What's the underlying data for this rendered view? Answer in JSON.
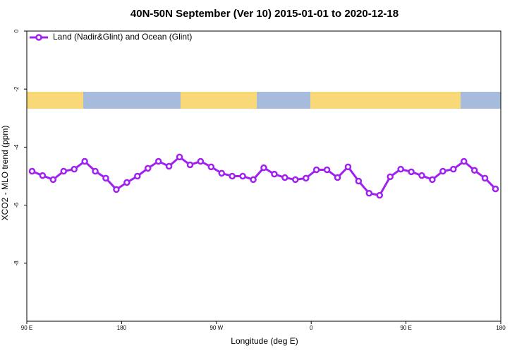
{
  "chart_data": {
    "type": "line",
    "title": "40N-50N September (Ver 10)   2015-01-01 to 2020-12-18",
    "xlabel": "Longitude (deg E)",
    "ylabel": "XCO2 - MLO trend (ppm)",
    "x": [
      95,
      105,
      115,
      125,
      135,
      145,
      155,
      165,
      175,
      185,
      195,
      205,
      215,
      225,
      235,
      245,
      255,
      265,
      275,
      285,
      295,
      305,
      315,
      325,
      335,
      345,
      355,
      365,
      375,
      385,
      395,
      405,
      415,
      425,
      435,
      445,
      455,
      465,
      475,
      485,
      495,
      505,
      515,
      525,
      535
    ],
    "series": [
      {
        "name": "Land (Nadir&Glint) and Ocean (Glint)",
        "color": "#a020f0",
        "values": [
          -4.83,
          -4.98,
          -5.12,
          -4.83,
          -4.76,
          -4.49,
          -4.83,
          -5.07,
          -5.46,
          -5.22,
          -5.0,
          -4.73,
          -4.49,
          -4.66,
          -4.34,
          -4.61,
          -4.49,
          -4.68,
          -4.9,
          -5.0,
          -5.0,
          -5.12,
          -4.71,
          -4.93,
          -5.05,
          -5.12,
          -5.07,
          -4.78,
          -4.78,
          -5.05,
          -4.68,
          -5.17,
          -5.59,
          -5.66,
          -5.02,
          -4.76,
          -4.85,
          -4.98,
          -5.12,
          -4.83,
          -4.76,
          -4.49,
          -4.8,
          -5.07,
          -5.44
        ]
      }
    ],
    "xlim": [
      90,
      540
    ],
    "xticks": [
      {
        "value": 90,
        "label": "90 E"
      },
      180,
      {
        "value": 270,
        "label": "90 W"
      },
      {
        "value": 360,
        "label": "0"
      },
      {
        "value": 450,
        "label": "90 E"
      },
      {
        "value": 540,
        "label": "180"
      }
    ],
    "ylim": [
      -10,
      0
    ],
    "yticks": [
      0,
      -2,
      -4,
      -6,
      -8
    ],
    "legend": "top-left"
  }
}
